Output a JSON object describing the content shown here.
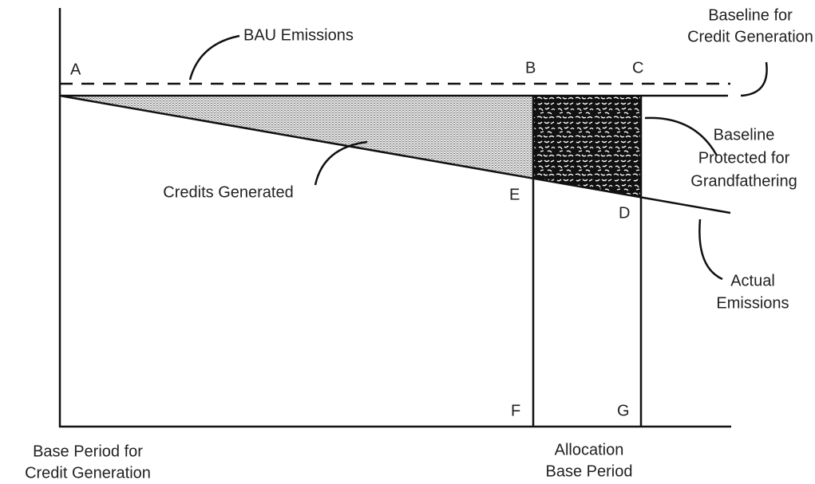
{
  "points": {
    "A": "A",
    "B": "B",
    "C": "C",
    "D": "D",
    "E": "E",
    "F": "F",
    "G": "G"
  },
  "labels": {
    "bau": [
      "BAU Emissions"
    ],
    "baseline": [
      "Baseline for",
      "Credit Generation"
    ],
    "protected": [
      "Baseline",
      "Protected for",
      "Grandfathering"
    ],
    "credits": [
      "Credits Generated"
    ],
    "actual": [
      "Actual",
      "Emissions"
    ],
    "base_period": [
      "Base Period for",
      "Credit Generation"
    ],
    "allocation": [
      "Allocation",
      "Base Period"
    ]
  }
}
